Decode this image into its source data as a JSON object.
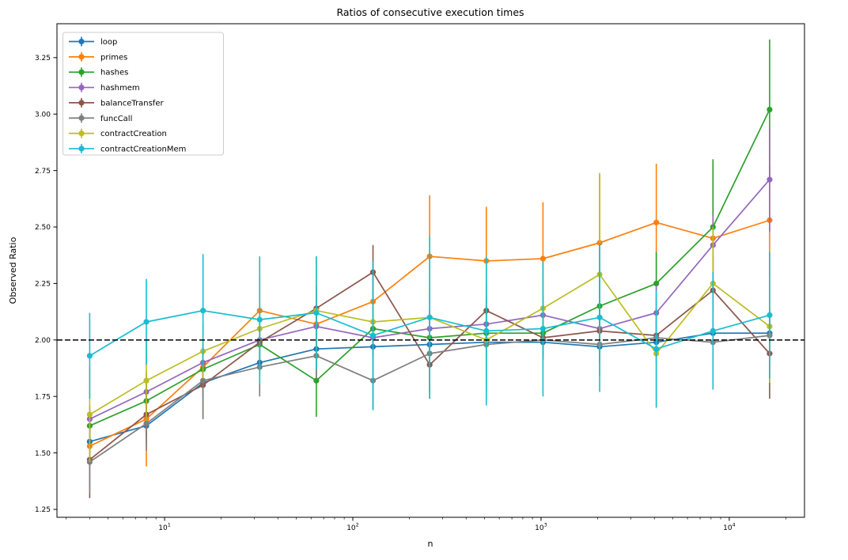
{
  "figure": {
    "title": "Ratios of consecutive execution times",
    "xlabel": "n",
    "ylabel": "Observed Ratio"
  },
  "chart_data": {
    "type": "line",
    "title": "Ratios of consecutive execution times",
    "xlabel": "n",
    "ylabel": "Observed Ratio",
    "x_scale": "log10",
    "grid": false,
    "legend_position": "upper-left",
    "xlim": [
      2.68,
      25100
    ],
    "ylim": [
      1.215,
      3.4
    ],
    "reference_line": {
      "y": 2.0,
      "style": "dashed",
      "color": "#000000"
    },
    "x": [
      4,
      8,
      16,
      32,
      64,
      128,
      256,
      512,
      1024,
      2048,
      4096,
      8192,
      16384
    ],
    "x_ticks": {
      "values": [
        10,
        100,
        1000,
        10000
      ],
      "base": "10",
      "exponents": [
        "1",
        "2",
        "3",
        "4"
      ]
    },
    "y_ticks": {
      "values": [
        1.25,
        1.5,
        1.75,
        2.0,
        2.25,
        2.5,
        2.75,
        3.0,
        3.25
      ],
      "labels": [
        "1.25",
        "1.50",
        "1.75",
        "2.00",
        "2.25",
        "2.50",
        "2.75",
        "3.00",
        "3.25"
      ]
    },
    "series": [
      {
        "name": "loop",
        "color": "#1f77b4",
        "values": [
          1.55,
          1.62,
          1.81,
          1.9,
          1.96,
          1.97,
          1.98,
          1.99,
          1.99,
          1.97,
          1.99,
          2.03,
          2.03
        ],
        "err": [
          0.05,
          0.08,
          0.07,
          0.05,
          0.04,
          0.04,
          0.03,
          0.03,
          0.03,
          0.02,
          0.02,
          0.03,
          0.02
        ]
      },
      {
        "name": "primes",
        "color": "#ff7f0e",
        "values": [
          1.53,
          1.65,
          1.88,
          2.13,
          2.07,
          2.17,
          2.37,
          2.35,
          2.36,
          2.43,
          2.52,
          2.45,
          2.53
        ],
        "err": [
          0.09,
          0.21,
          0.1,
          0.15,
          0.08,
          0.18,
          0.27,
          0.24,
          0.25,
          0.3,
          0.26,
          0.33,
          0.24
        ]
      },
      {
        "name": "hashes",
        "color": "#2ca02c",
        "values": [
          1.62,
          1.73,
          1.87,
          1.98,
          1.82,
          2.05,
          2.01,
          2.03,
          2.03,
          2.15,
          2.25,
          2.5,
          3.02
        ],
        "err": [
          0.07,
          0.1,
          0.08,
          0.07,
          0.16,
          0.1,
          0.12,
          0.12,
          0.1,
          0.12,
          0.14,
          0.3,
          0.31
        ]
      },
      {
        "name": "hashmem",
        "color": "#9467bd",
        "values": [
          1.65,
          1.77,
          1.9,
          2.0,
          2.06,
          2.01,
          2.05,
          2.07,
          2.11,
          2.05,
          2.12,
          2.42,
          2.71
        ],
        "err": [
          0.06,
          0.08,
          0.07,
          0.06,
          0.06,
          0.06,
          0.08,
          0.08,
          0.08,
          0.1,
          0.12,
          0.13,
          0.23
        ]
      },
      {
        "name": "balanceTransfer",
        "color": "#8c564b",
        "values": [
          1.47,
          1.67,
          1.8,
          1.99,
          2.14,
          2.3,
          1.89,
          2.13,
          2.01,
          2.04,
          2.02,
          2.22,
          1.94
        ],
        "err": [
          0.17,
          0.1,
          0.15,
          0.12,
          0.1,
          0.12,
          0.15,
          0.12,
          0.1,
          0.12,
          0.12,
          0.15,
          0.2
        ]
      },
      {
        "name": "funcCall",
        "color": "#7f7f7f",
        "values": [
          1.46,
          1.63,
          1.82,
          1.88,
          1.93,
          1.82,
          1.94,
          1.98,
          2.0,
          1.98,
          2.01,
          1.99,
          2.02
        ],
        "err": [
          0.14,
          0.12,
          0.17,
          0.13,
          0.1,
          0.13,
          0.17,
          0.21,
          0.08,
          0.08,
          0.08,
          0.08,
          0.1
        ]
      },
      {
        "name": "contractCreation",
        "color": "#bcbd22",
        "values": [
          1.67,
          1.82,
          1.95,
          2.05,
          2.13,
          2.08,
          2.1,
          2.0,
          2.14,
          2.29,
          1.94,
          2.25,
          2.06
        ],
        "err": [
          0.21,
          0.18,
          0.12,
          0.1,
          0.24,
          0.1,
          0.12,
          0.19,
          0.12,
          0.45,
          0.24,
          0.25,
          0.25
        ]
      },
      {
        "name": "contractCreationMem",
        "color": "#17becf",
        "values": [
          1.93,
          2.08,
          2.13,
          2.09,
          2.12,
          2.02,
          2.1,
          2.04,
          2.05,
          2.1,
          1.96,
          2.04,
          2.11
        ],
        "err": [
          0.19,
          0.19,
          0.25,
          0.28,
          0.25,
          0.33,
          0.36,
          0.33,
          0.3,
          0.33,
          0.26,
          0.26,
          0.28
        ]
      }
    ]
  }
}
